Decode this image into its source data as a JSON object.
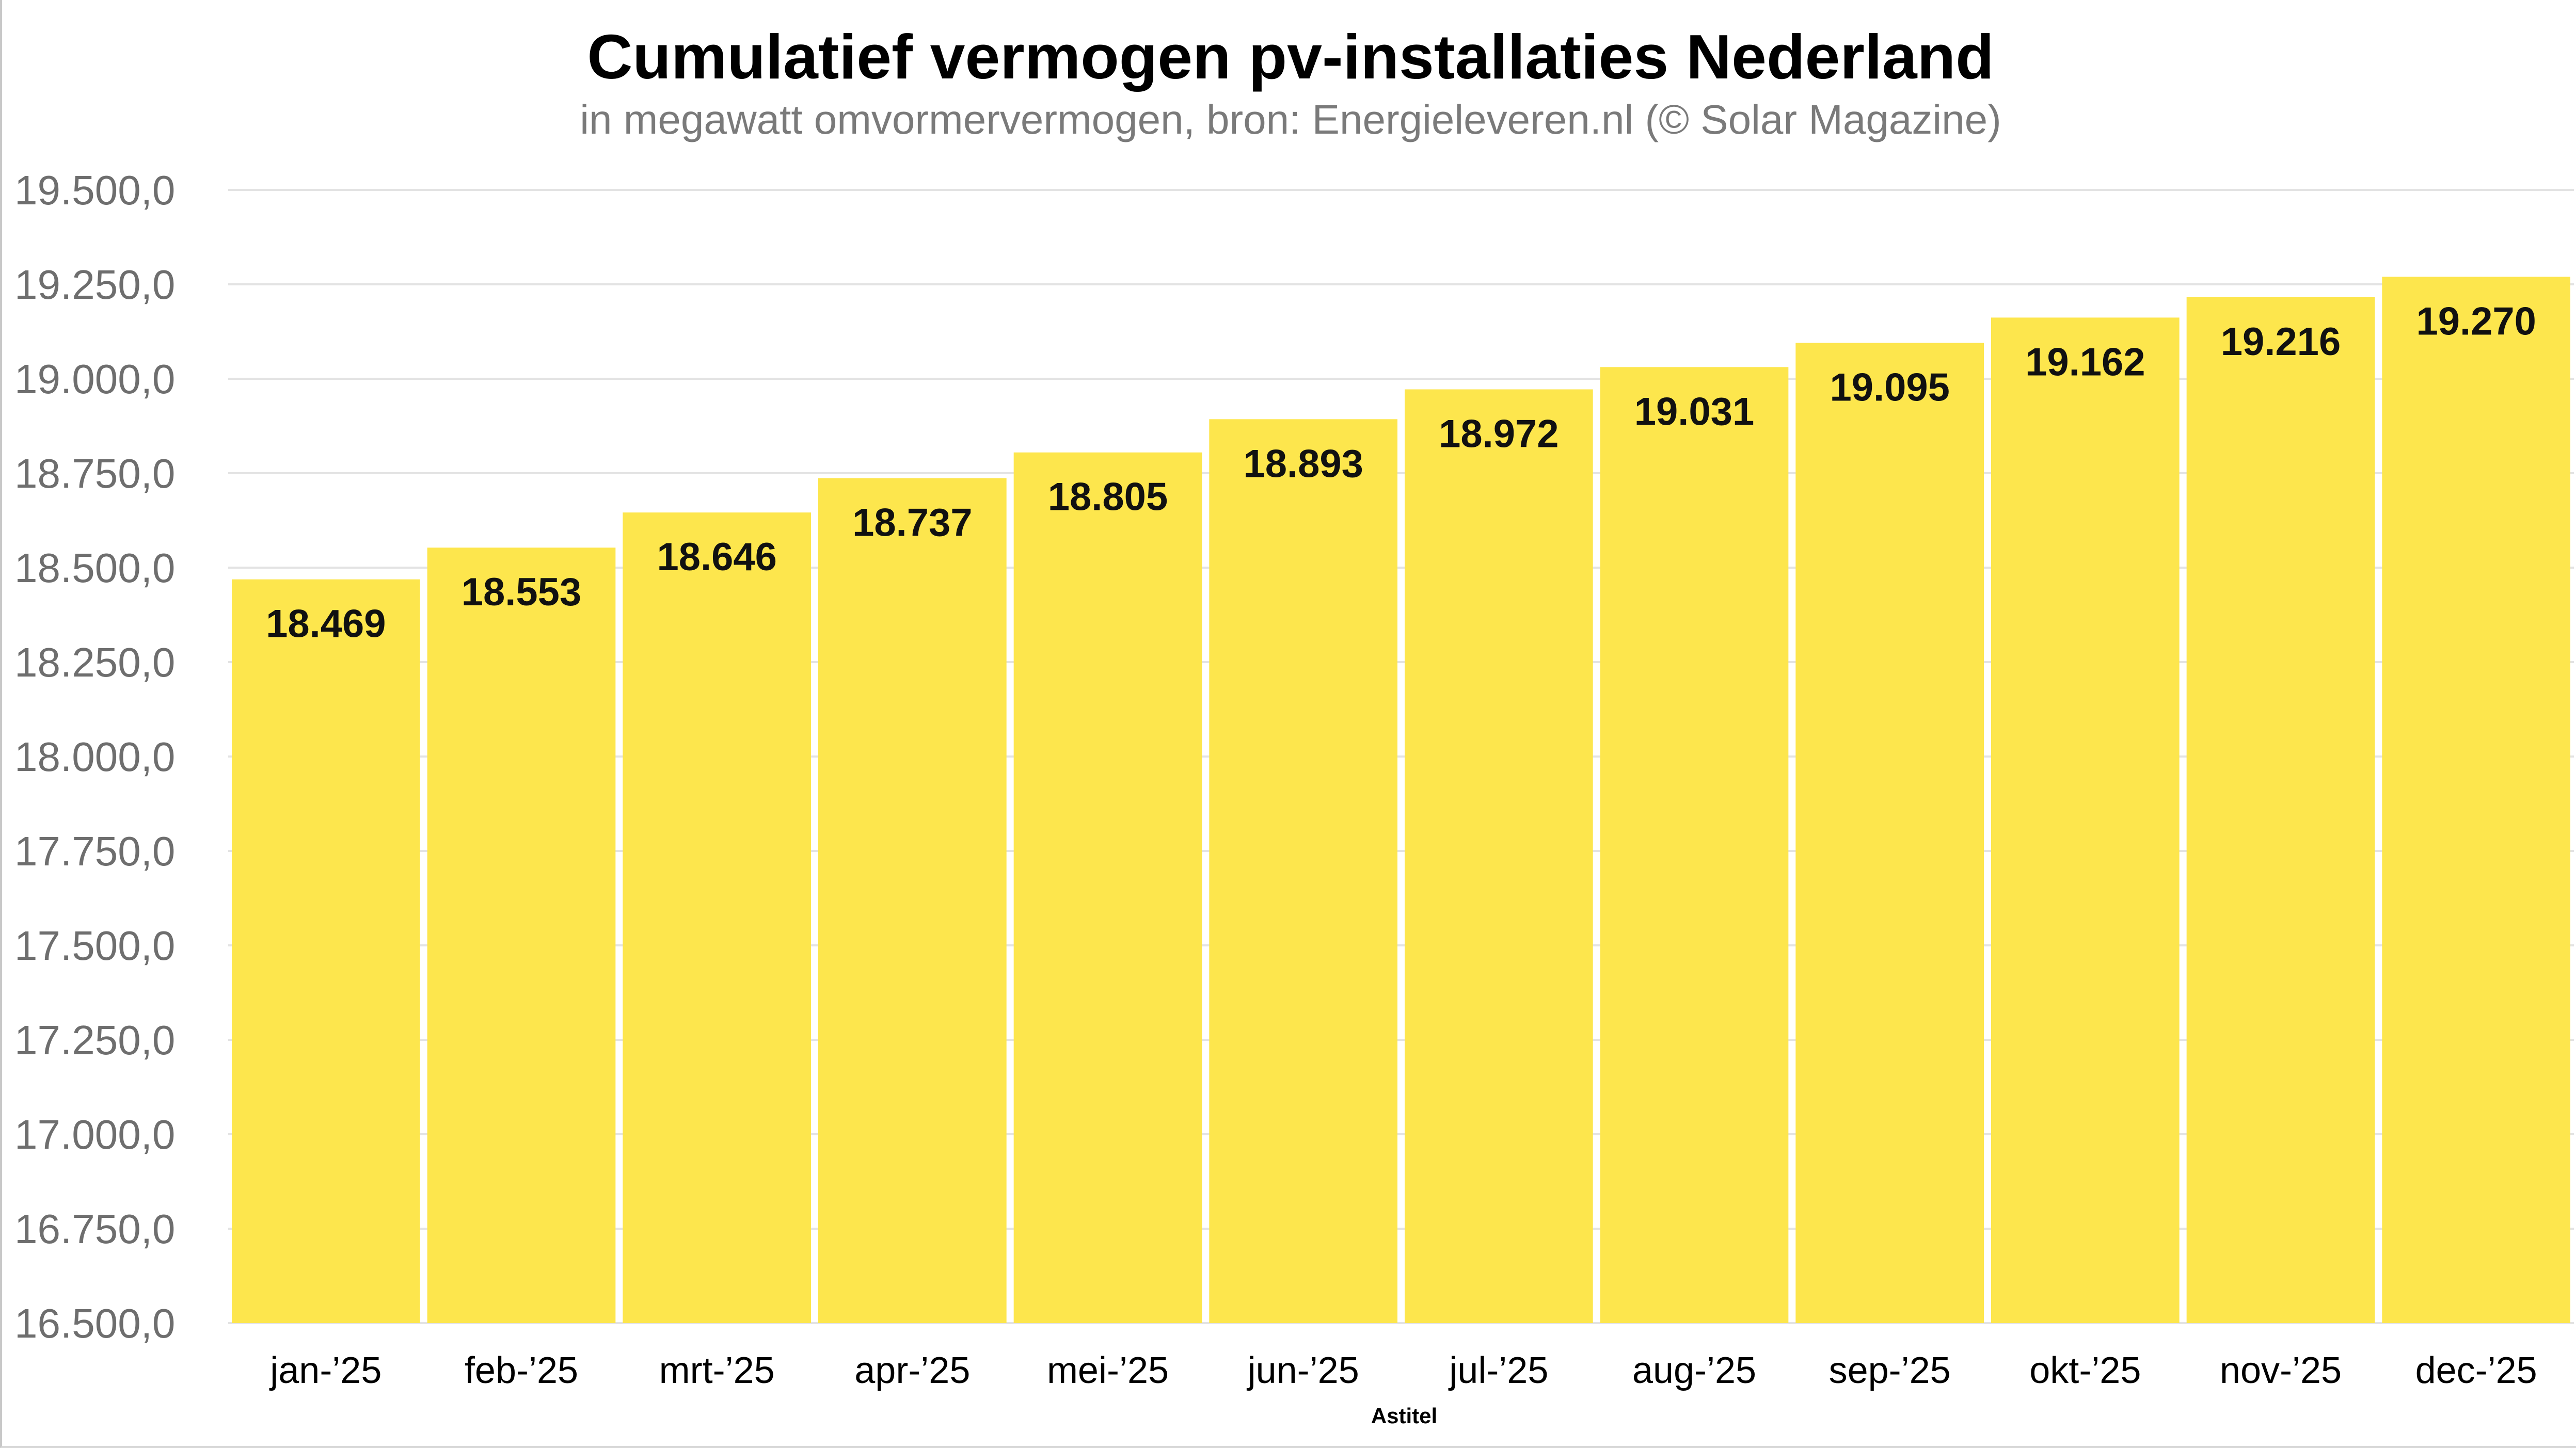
{
  "chart_data": {
    "type": "bar",
    "title": "Cumulatief vermogen pv-installaties Nederland",
    "subtitle": "in megawatt omvormervermogen, bron: Energieleveren.nl (© Solar Magazine)",
    "xlabel": "Astitel",
    "ylabel": "",
    "categories": [
      "jan-’25",
      "feb-’25",
      "mrt-’25",
      "apr-’25",
      "mei-’25",
      "jun-’25",
      "jul-’25",
      "aug-’25",
      "sep-’25",
      "okt-’25",
      "nov-’25",
      "dec-’25"
    ],
    "values": [
      18469,
      18553,
      18646,
      18737,
      18805,
      18893,
      18972,
      19031,
      19095,
      19162,
      19216,
      19270
    ],
    "value_labels": [
      "18.469",
      "18.553",
      "18.646",
      "18.737",
      "18.805",
      "18.893",
      "18.972",
      "19.031",
      "19.095",
      "19.162",
      "19.216",
      "19.270"
    ],
    "ylim": [
      16500,
      19500
    ],
    "yticks": [
      16500,
      16750,
      17000,
      17250,
      17500,
      17750,
      18000,
      18250,
      18500,
      18750,
      19000,
      19250,
      19500
    ],
    "ytick_labels": [
      "16.500,0",
      "16.750,0",
      "17.000,0",
      "17.250,0",
      "17.500,0",
      "17.750,0",
      "18.000,0",
      "18.250,0",
      "18.500,0",
      "18.750,0",
      "19.000,0",
      "19.250,0",
      "19.500,0"
    ],
    "grid": true,
    "legend": "none",
    "bar_color": "#FDE64D",
    "grid_color": "#e3e3e3"
  }
}
